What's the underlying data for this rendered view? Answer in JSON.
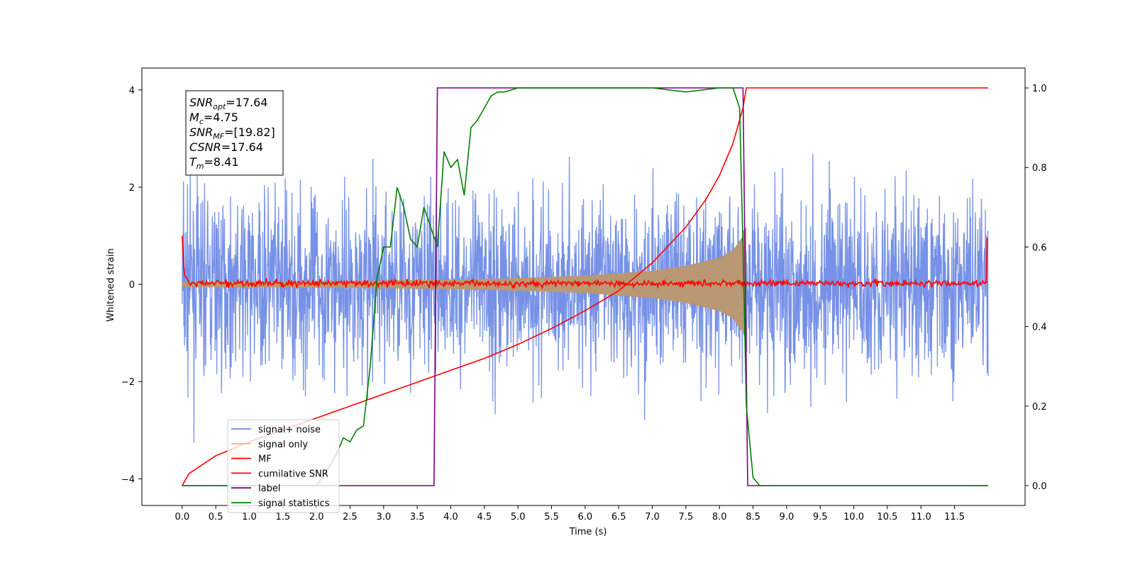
{
  "chart_data": {
    "type": "line",
    "xlabel": "Time (s)",
    "ylabel": "Whitened strain",
    "xlim": [
      -0.6,
      12.55
    ],
    "ylim": [
      -4.55,
      4.45
    ],
    "ylim_right": [
      -0.05,
      1.05
    ],
    "x_ticks": [
      0.0,
      0.5,
      1.0,
      1.5,
      2.0,
      2.5,
      3.0,
      3.5,
      4.0,
      4.5,
      5.0,
      5.5,
      6.0,
      6.5,
      7.0,
      7.5,
      8.0,
      8.5,
      9.0,
      9.5,
      10.0,
      10.5,
      11.0,
      11.5
    ],
    "x_tick_labels": [
      "0.0",
      "0.5",
      "1.0",
      "1.5",
      "2.0",
      "2.5",
      "3.0",
      "3.5",
      "4.0",
      "4.5",
      "5.0",
      "5.5",
      "6.0",
      "6.5",
      "7.0",
      "7.5",
      "8.0",
      "8.5",
      "9.0",
      "9.5",
      "10.0",
      "10.5",
      "11.0",
      "11.5"
    ],
    "y_ticks": [
      -4,
      -2,
      0,
      2,
      4
    ],
    "y_tick_labels": [
      "−4",
      "−2",
      "0",
      "2",
      "4"
    ],
    "y2_ticks": [
      0.0,
      0.2,
      0.4,
      0.6,
      0.8,
      1.0
    ],
    "y2_tick_labels": [
      "0.0",
      "0.2",
      "0.4",
      "0.6",
      "0.8",
      "1.0"
    ],
    "grid": false,
    "legend_position": "lower-left",
    "series": [
      {
        "name": "signal+ noise",
        "axis": "left",
        "color": "#6f8be6",
        "note": "noise band roughly between -3 and +3 over 0–12 s",
        "x": [
          0.0,
          12.0
        ],
        "envelope": [
          -3.0,
          3.0
        ]
      },
      {
        "name": "signal only",
        "axis": "left",
        "color": "#f5b97a",
        "x": [
          0.0,
          1.0,
          2.0,
          3.0,
          4.0,
          5.0,
          6.0,
          7.0,
          7.5,
          8.0,
          8.2,
          8.35,
          8.4
        ],
        "amplitude": [
          0.05,
          0.06,
          0.07,
          0.08,
          0.1,
          0.13,
          0.18,
          0.28,
          0.38,
          0.55,
          0.7,
          1.0,
          1.2
        ]
      },
      {
        "name": "MF",
        "axis": "left",
        "color": "#ff0000",
        "x": [
          0.0,
          0.03,
          0.1,
          12.0
        ],
        "y": [
          1.0,
          0.2,
          0.05,
          0.0
        ],
        "end": [
          0.0,
          1.0
        ]
      },
      {
        "name": "cumilative SNR",
        "axis": "right",
        "color": "#ff0000",
        "x": [
          0.0,
          0.1,
          0.5,
          1.0,
          1.5,
          2.0,
          2.5,
          3.0,
          3.5,
          4.0,
          4.5,
          5.0,
          5.5,
          6.0,
          6.5,
          7.0,
          7.5,
          7.8,
          8.0,
          8.2,
          8.35,
          8.4,
          12.0
        ],
        "y": [
          0.0,
          0.03,
          0.075,
          0.11,
          0.14,
          0.17,
          0.2,
          0.23,
          0.26,
          0.29,
          0.32,
          0.355,
          0.395,
          0.44,
          0.49,
          0.56,
          0.65,
          0.72,
          0.78,
          0.86,
          0.95,
          1.0,
          1.0
        ]
      },
      {
        "name": "label",
        "axis": "right",
        "color": "#800080",
        "x": [
          0.0,
          3.75,
          3.8,
          8.35,
          8.42,
          12.0
        ],
        "y": [
          0.0,
          0.0,
          1.0,
          1.0,
          0.0,
          0.0
        ]
      },
      {
        "name": "signal statistics",
        "axis": "right",
        "color": "#008000",
        "x": [
          0.0,
          2.0,
          2.2,
          2.3,
          2.4,
          2.5,
          2.6,
          2.7,
          2.8,
          2.9,
          3.0,
          3.1,
          3.2,
          3.3,
          3.4,
          3.5,
          3.6,
          3.7,
          3.8,
          3.9,
          4.0,
          4.1,
          4.2,
          4.3,
          4.4,
          4.5,
          4.6,
          4.7,
          4.8,
          5.0,
          5.5,
          6.0,
          7.0,
          7.5,
          8.0,
          8.2,
          8.3,
          8.35,
          8.4,
          8.5,
          8.6,
          8.8,
          12.0
        ],
        "y": [
          0.0,
          0.0,
          0.05,
          0.08,
          0.12,
          0.11,
          0.14,
          0.15,
          0.3,
          0.52,
          0.6,
          0.6,
          0.75,
          0.7,
          0.62,
          0.6,
          0.7,
          0.65,
          0.6,
          0.84,
          0.8,
          0.82,
          0.73,
          0.9,
          0.92,
          0.95,
          0.98,
          0.99,
          0.99,
          1.0,
          1.0,
          1.0,
          1.0,
          0.99,
          1.0,
          1.0,
          0.95,
          0.6,
          0.2,
          0.02,
          0.0,
          0.0,
          0.0
        ]
      }
    ]
  },
  "info_box": {
    "lines": [
      {
        "sym": "SNR",
        "sub": "opt",
        "value": "=17.64"
      },
      {
        "sym": "M",
        "sub": "c",
        "value": "=4.75"
      },
      {
        "sym": "SNR",
        "sub": "MF",
        "value": "=[19.82]"
      },
      {
        "sym": "CSNR",
        "sub": "",
        "value": "=17.64"
      },
      {
        "sym": "T",
        "sub": "m",
        "value": "=8.41"
      }
    ]
  },
  "legend": [
    {
      "label": "signal+ noise",
      "color": "#6f8be6"
    },
    {
      "label": "signal only",
      "color": "#f5b97a"
    },
    {
      "label": "MF",
      "color": "#ff0000"
    },
    {
      "label": "cumilative SNR",
      "color": "#ff0000"
    },
    {
      "label": "label",
      "color": "#800080"
    },
    {
      "label": "signal statistics",
      "color": "#008000"
    }
  ]
}
